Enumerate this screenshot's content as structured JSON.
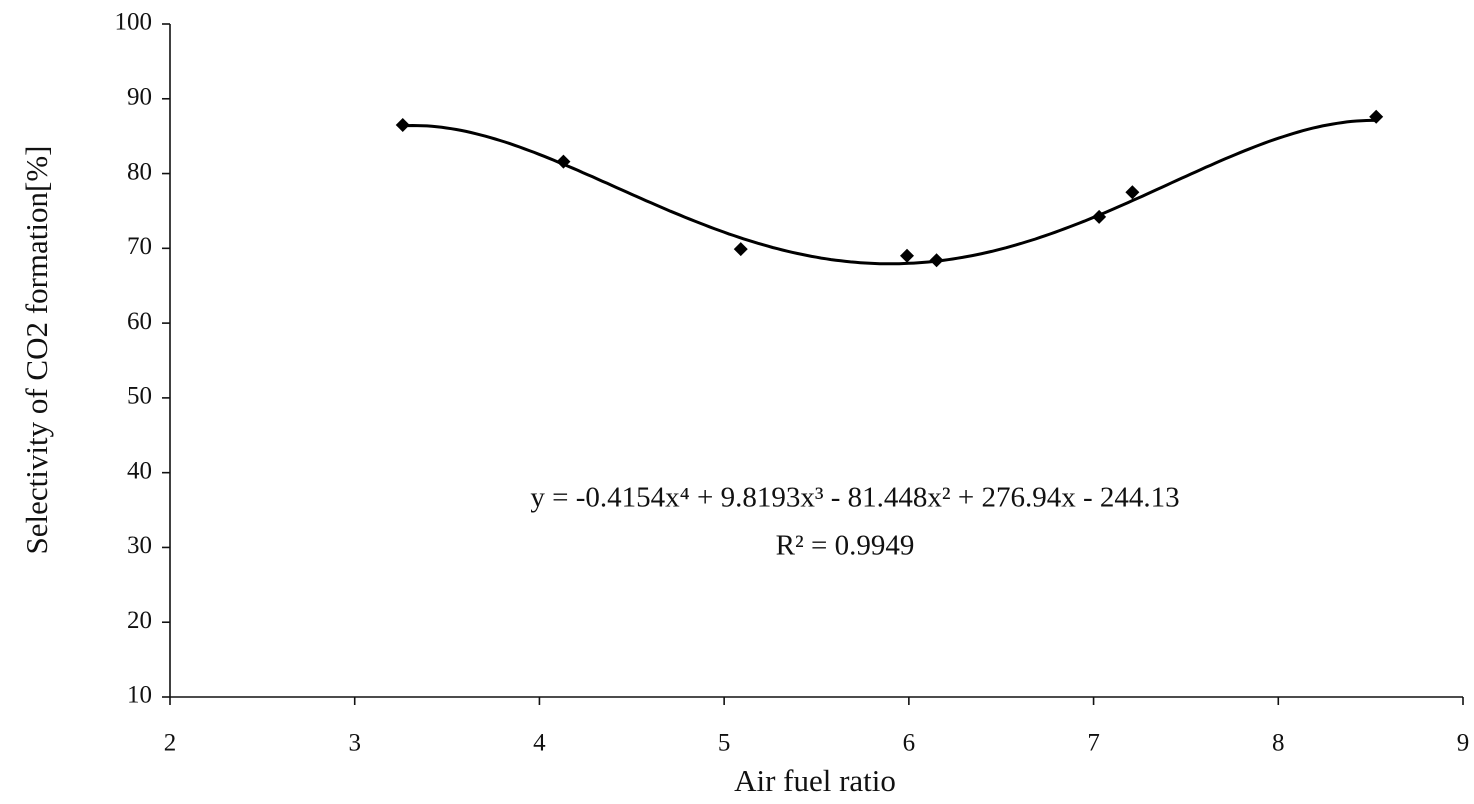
{
  "chart_data": {
    "type": "scatter",
    "x_label": "Air fuel ratio",
    "y_label": "Selectivity of CO2 formation[%]",
    "x": [
      3.26,
      4.13,
      5.09,
      5.99,
      6.15,
      7.03,
      7.21,
      8.53
    ],
    "values": [
      86.5,
      81.6,
      69.9,
      69.0,
      68.4,
      74.2,
      77.5,
      87.6
    ],
    "color": "#000000",
    "xlim": [
      2,
      9
    ],
    "xticks": [
      2,
      3,
      4,
      5,
      6,
      7,
      8,
      9
    ],
    "ylim": [
      10,
      100
    ],
    "yticks": [
      10,
      20,
      30,
      40,
      50,
      60,
      70,
      80,
      90,
      100
    ],
    "grid": false,
    "trendline": {
      "coefficients": [
        -0.4154,
        9.8193,
        -81.448,
        276.94,
        -244.13
      ],
      "equation": "y = -0.4154x⁴ + 9.8193x³ - 81.448x² + 276.94x - 244.13",
      "r_squared": "R² = 0.9949"
    }
  }
}
